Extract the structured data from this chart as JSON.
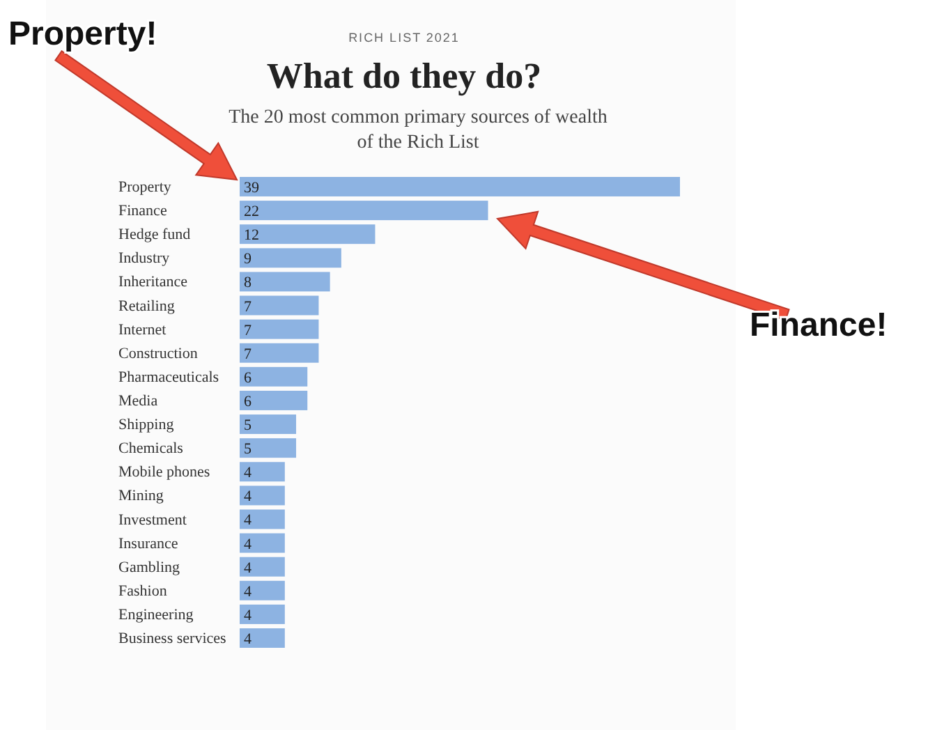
{
  "chart_data": {
    "type": "bar",
    "orientation": "horizontal",
    "title": "What do they do?",
    "subtitle": "The 20 most common primary sources of wealth of the Rich List",
    "annotations": [
      "RICH LIST 2021",
      "Property!",
      "Finance!"
    ],
    "categories": [
      "Property",
      "Finance",
      "Hedge fund",
      "Industry",
      "Inheritance",
      "Retailing",
      "Internet",
      "Construction",
      "Pharmaceuticals",
      "Media",
      "Shipping",
      "Chemicals",
      "Mobile phones",
      "Mining",
      "Investment",
      "Insurance",
      "Gambling",
      "Fashion",
      "Engineering",
      "Business services"
    ],
    "values": [
      39,
      22,
      12,
      9,
      8,
      7,
      7,
      7,
      6,
      6,
      5,
      5,
      4,
      4,
      4,
      4,
      4,
      4,
      4,
      4
    ],
    "color": "#8db3e2",
    "data_labels": true
  }
}
